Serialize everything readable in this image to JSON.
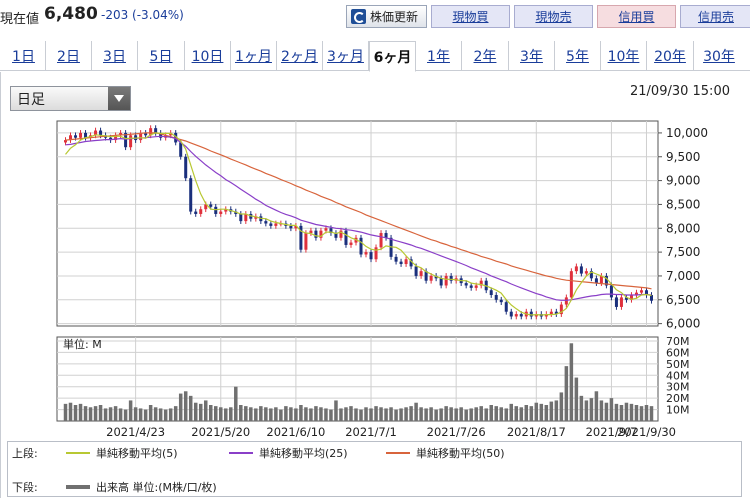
{
  "header": {
    "price_label": "現在値",
    "price_value": "6,480",
    "price_change": "-203 (-3.04%)",
    "refresh_label": "株価更新",
    "buttons": [
      "現物買",
      "現物売",
      "信用買",
      "信用売"
    ]
  },
  "tabs": [
    "1日",
    "2日",
    "3日",
    "5日",
    "10日",
    "1ヶ月",
    "2ヶ月",
    "3ヶ月",
    "6ヶ月",
    "1年",
    "2年",
    "3年",
    "5年",
    "10年",
    "20年",
    "30年"
  ],
  "active_tab": "6ヶ月",
  "chart_controls": {
    "period_select": "日足",
    "timestamp": "21/09/30 15:00"
  },
  "legend": {
    "upper_label": "上段:",
    "lower_label": "下段:",
    "ma5": "単純移動平均(5)",
    "ma25": "単純移動平均(25)",
    "ma50": "単純移動平均(50)",
    "volume": "出来高 単位:(M株/口/枚)"
  },
  "colors": {
    "ma5": "#b8c832",
    "ma25": "#8a3fc8",
    "ma50": "#d8643c",
    "up_candle": "#e0303c",
    "down_candle": "#1a2f7c",
    "volume_bar": "#707070"
  },
  "chart_data": [
    {
      "type": "candlestick",
      "yticks": [
        "10,000",
        "9,500",
        "9,000",
        "8,500",
        "8,000",
        "7,500",
        "7,000",
        "6,500",
        "6,000"
      ],
      "ylim": [
        5950,
        10250
      ],
      "xticks": [
        "2021/4/23",
        "2021/5/20",
        "2021/6/10",
        "2021/7/1",
        "2021/7/26",
        "2021/8/17",
        "2021/9/7",
        "2021/9/30"
      ],
      "close": [
        9850,
        9950,
        9900,
        10000,
        9900,
        9950,
        10050,
        9950,
        9900,
        9850,
        9950,
        10000,
        9700,
        9950,
        9850,
        10000,
        9950,
        10100,
        10000,
        9900,
        9950,
        10000,
        9800,
        9500,
        9050,
        8350,
        8300,
        8400,
        8500,
        8450,
        8300,
        8350,
        8400,
        8350,
        8300,
        8150,
        8300,
        8200,
        8250,
        8150,
        8100,
        8050,
        8100,
        8100,
        8050,
        8000,
        8050,
        7550,
        7900,
        7950,
        7800,
        7950,
        8000,
        7900,
        7800,
        7950,
        7650,
        7700,
        7800,
        7450,
        7500,
        7350,
        7600,
        7900,
        7800,
        7400,
        7300,
        7250,
        7350,
        7200,
        7000,
        7100,
        6900,
        7000,
        6950,
        6800,
        7000,
        6900,
        6950,
        6850,
        6800,
        6750,
        6800,
        6900,
        6700,
        6600,
        6500,
        6450,
        6250,
        6150,
        6200,
        6150,
        6250,
        6150,
        6200,
        6150,
        6200,
        6250,
        6200,
        6400,
        6550,
        7100,
        7200,
        7050,
        7100,
        6950,
        6850,
        7000,
        6800,
        6550,
        6350,
        6550,
        6500,
        6600,
        6650,
        6700,
        6600,
        6480
      ],
      "ma5": [
        9550,
        9680,
        9750,
        9850,
        9900,
        9920,
        9960,
        9950,
        9940,
        9920,
        9930,
        9930,
        9880,
        9890,
        9890,
        9900,
        9890,
        9960,
        10000,
        9990,
        9990,
        9990,
        9930,
        9830,
        9660,
        9330,
        9000,
        8720,
        8520,
        8400,
        8390,
        8400,
        8400,
        8370,
        8340,
        8300,
        8300,
        8260,
        8240,
        8210,
        8200,
        8150,
        8120,
        8100,
        8080,
        8060,
        8060,
        7940,
        7900,
        7890,
        7840,
        7830,
        7920,
        7920,
        7890,
        7920,
        7860,
        7800,
        7760,
        7710,
        7620,
        7560,
        7540,
        7560,
        7630,
        7610,
        7600,
        7540,
        7420,
        7310,
        7210,
        7170,
        7090,
        7040,
        6990,
        6950,
        6930,
        6930,
        6920,
        6900,
        6900,
        6850,
        6830,
        6820,
        6790,
        6750,
        6700,
        6640,
        6500,
        6390,
        6310,
        6240,
        6200,
        6180,
        6190,
        6180,
        6190,
        6190,
        6200,
        6240,
        6320,
        6500,
        6710,
        6860,
        7000,
        7080,
        7040,
        7000,
        6950,
        6830,
        6710,
        6650,
        6550,
        6510,
        6530,
        6600,
        6610,
        6590
      ],
      "ma25": [
        9750,
        9760,
        9780,
        9800,
        9820,
        9830,
        9840,
        9850,
        9860,
        9860,
        9870,
        9880,
        9870,
        9880,
        9890,
        9890,
        9900,
        9910,
        9920,
        9930,
        9920,
        9910,
        9880,
        9800,
        9720,
        9610,
        9510,
        9420,
        9330,
        9250,
        9170,
        9100,
        9020,
        8960,
        8890,
        8820,
        8750,
        8680,
        8610,
        8550,
        8480,
        8430,
        8380,
        8330,
        8290,
        8260,
        8220,
        8170,
        8140,
        8110,
        8080,
        8060,
        8040,
        8020,
        8000,
        7990,
        7970,
        7960,
        7940,
        7920,
        7890,
        7860,
        7840,
        7820,
        7800,
        7770,
        7740,
        7710,
        7680,
        7650,
        7610,
        7580,
        7540,
        7500,
        7460,
        7420,
        7380,
        7340,
        7300,
        7260,
        7220,
        7170,
        7130,
        7090,
        7050,
        7000,
        6960,
        6920,
        6880,
        6830,
        6790,
        6750,
        6710,
        6670,
        6630,
        6600,
        6560,
        6530,
        6500,
        6490,
        6490,
        6500,
        6520,
        6540,
        6560,
        6580,
        6590,
        6610,
        6620,
        6620,
        6610,
        6610,
        6600,
        6600,
        6600,
        6610,
        6610,
        6600
      ],
      "ma50": [
        9850,
        9860,
        9870,
        9880,
        9890,
        9900,
        9910,
        9920,
        9930,
        9940,
        9950,
        9960,
        9960,
        9970,
        9980,
        9990,
        10000,
        10000,
        10000,
        9980,
        9950,
        9920,
        9890,
        9860,
        9830,
        9790,
        9750,
        9710,
        9670,
        9620,
        9580,
        9540,
        9500,
        9450,
        9410,
        9370,
        9330,
        9280,
        9240,
        9200,
        9150,
        9110,
        9070,
        9020,
        8980,
        8940,
        8890,
        8850,
        8800,
        8760,
        8720,
        8670,
        8630,
        8590,
        8540,
        8500,
        8450,
        8410,
        8370,
        8330,
        8280,
        8240,
        8200,
        8160,
        8120,
        8080,
        8040,
        8000,
        7960,
        7920,
        7880,
        7840,
        7800,
        7760,
        7730,
        7690,
        7660,
        7620,
        7590,
        7550,
        7520,
        7480,
        7450,
        7410,
        7380,
        7350,
        7310,
        7280,
        7250,
        7210,
        7180,
        7150,
        7120,
        7090,
        7060,
        7030,
        7000,
        6980,
        6950,
        6930,
        6910,
        6900,
        6890,
        6880,
        6870,
        6860,
        6850,
        6840,
        6830,
        6820,
        6810,
        6800,
        6790,
        6780,
        6770,
        6760,
        6750,
        6730
      ]
    },
    {
      "type": "bar",
      "unit_label": "単位: M",
      "yticks": [
        "70M",
        "60M",
        "50M",
        "40M",
        "30M",
        "20M",
        "10M"
      ],
      "ylim": [
        0,
        70
      ],
      "values": [
        15,
        16,
        14,
        15,
        13,
        12,
        13,
        14,
        11,
        12,
        13,
        11,
        10,
        18,
        12,
        11,
        10,
        14,
        12,
        11,
        10,
        11,
        13,
        24,
        26,
        22,
        16,
        15,
        18,
        14,
        13,
        12,
        11,
        12,
        30,
        14,
        13,
        12,
        11,
        13,
        12,
        11,
        12,
        10,
        13,
        12,
        11,
        14,
        12,
        11,
        13,
        12,
        11,
        10,
        18,
        11,
        12,
        13,
        11,
        10,
        12,
        11,
        13,
        12,
        11,
        12,
        10,
        11,
        12,
        13,
        16,
        12,
        11,
        12,
        10,
        11,
        13,
        12,
        11,
        12,
        10,
        11,
        12,
        13,
        11,
        14,
        13,
        12,
        11,
        15,
        13,
        12,
        14,
        13,
        16,
        15,
        14,
        17,
        18,
        25,
        48,
        68,
        38,
        22,
        18,
        20,
        26,
        18,
        16,
        20,
        15,
        14,
        16,
        15,
        14,
        13,
        14,
        13
      ]
    }
  ]
}
